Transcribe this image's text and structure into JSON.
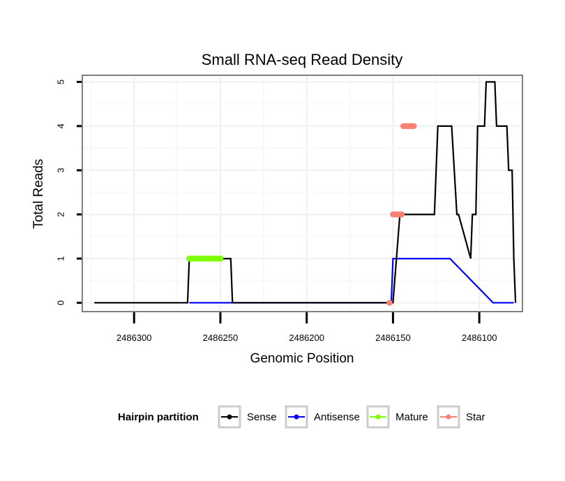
{
  "chart_data": {
    "type": "line",
    "title": "Small RNA-seq Read Density",
    "xlabel": "Genomic Position",
    "ylabel": "Total Reads",
    "x_reversed": true,
    "xlim": [
      2486330,
      2486075
    ],
    "ylim": [
      -0.2,
      5.15
    ],
    "xticks": [
      2486300,
      2486250,
      2486200,
      2486150,
      2486100
    ],
    "xtick_labels": [
      "2486300",
      "2486250",
      "2486200",
      "2486150",
      "2486100"
    ],
    "yticks": [
      0,
      1,
      2,
      3,
      4,
      5
    ],
    "ytick_labels": [
      "0",
      "1",
      "2",
      "3",
      "4",
      "5"
    ],
    "grid": true,
    "legend": {
      "title": "Hairpin partition",
      "position": "bottom",
      "entries": [
        {
          "name": "Sense",
          "color": "#000000"
        },
        {
          "name": "Antisense",
          "color": "#0000ff"
        },
        {
          "name": "Mature",
          "color": "#7fff00"
        },
        {
          "name": "Star",
          "color": "#fa8072"
        }
      ]
    },
    "series": [
      {
        "name": "Sense",
        "color": "#000000",
        "style": "line",
        "x": [
          2486323,
          2486269,
          2486268,
          2486256,
          2486255,
          2486244,
          2486243,
          2486152,
          2486150,
          2486146,
          2486145,
          2486126,
          2486124,
          2486122,
          2486120,
          2486117,
          2486116,
          2486113,
          2486112,
          2486105,
          2486104,
          2486102,
          2486101,
          2486097,
          2486096,
          2486091,
          2486090,
          2486084,
          2486083,
          2486081,
          2486080
        ],
        "y": [
          0,
          0,
          1,
          1,
          1,
          1,
          0,
          0,
          0,
          2,
          2,
          2,
          4,
          4,
          4,
          4,
          4,
          2,
          2,
          1,
          2,
          2,
          4,
          4,
          5,
          5,
          4,
          4,
          3,
          3,
          1
        ]
      },
      {
        "name": "Sense (tail)",
        "color": "#000000",
        "style": "line",
        "legend": false,
        "x": [
          2486080,
          2486079
        ],
        "y": [
          1,
          0
        ]
      },
      {
        "name": "Antisense",
        "color": "#0000ff",
        "style": "line",
        "x": [
          2486268,
          2486243,
          2486153,
          2486151,
          2486150,
          2486118,
          2486117,
          2486092,
          2486080
        ],
        "y": [
          0,
          0,
          0,
          0,
          1,
          1,
          1,
          0,
          0
        ]
      },
      {
        "name": "Mature",
        "color": "#7fff00",
        "style": "points",
        "x": [
          2486268,
          2486267,
          2486266,
          2486265,
          2486264,
          2486263,
          2486262,
          2486261,
          2486260,
          2486259,
          2486258,
          2486257,
          2486256,
          2486255,
          2486254,
          2486253,
          2486252,
          2486251,
          2486250
        ],
        "y": [
          1,
          1,
          1,
          1,
          1,
          1,
          1,
          1,
          1,
          1,
          1,
          1,
          1,
          1,
          1,
          1,
          1,
          1,
          1
        ]
      },
      {
        "name": "Star",
        "color": "#fa8072",
        "style": "points",
        "x": [
          2486152,
          2486150,
          2486149,
          2486148,
          2486147,
          2486146,
          2486145,
          2486144,
          2486143,
          2486142,
          2486141,
          2486140,
          2486139,
          2486138
        ],
        "y": [
          0,
          2,
          2,
          2,
          2,
          2,
          2,
          4,
          4,
          4,
          4,
          4,
          4,
          4
        ]
      }
    ]
  }
}
